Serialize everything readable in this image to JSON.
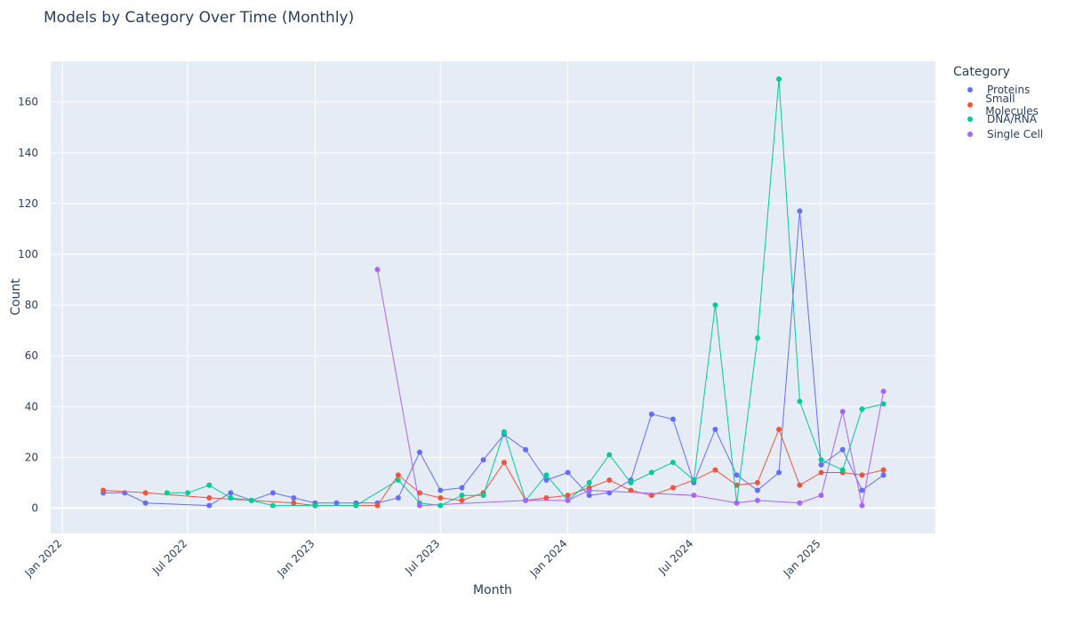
{
  "chart_data": {
    "type": "line",
    "title": "Models by Category Over Time (Monthly)",
    "xlabel": "Month",
    "ylabel": "Count",
    "x_range": [
      "2021-12-15",
      "2025-06-15"
    ],
    "ylim": [
      -10,
      176
    ],
    "x_ticks": [
      {
        "date": "2022-01-01",
        "label": "Jan 2022"
      },
      {
        "date": "2022-07-01",
        "label": "Jul 2022"
      },
      {
        "date": "2023-01-01",
        "label": "Jan 2023"
      },
      {
        "date": "2023-07-01",
        "label": "Jul 2023"
      },
      {
        "date": "2024-01-01",
        "label": "Jan 2024"
      },
      {
        "date": "2024-07-01",
        "label": "Jul 2024"
      },
      {
        "date": "2025-01-01",
        "label": "Jan 2025"
      }
    ],
    "y_ticks": [
      0,
      20,
      40,
      60,
      80,
      100,
      120,
      140,
      160
    ],
    "legend_title": "Category",
    "legend_position": "top-right",
    "grid": true,
    "series": [
      {
        "name": "Proteins",
        "color": "#636efa",
        "points": [
          [
            "2022-03-01",
            6
          ],
          [
            "2022-04-01",
            6
          ],
          [
            "2022-05-01",
            2
          ],
          [
            "2022-08-01",
            1
          ],
          [
            "2022-09-01",
            6
          ],
          [
            "2022-10-01",
            3
          ],
          [
            "2022-11-01",
            6
          ],
          [
            "2022-12-01",
            4
          ],
          [
            "2023-01-01",
            2
          ],
          [
            "2023-02-01",
            2
          ],
          [
            "2023-03-01",
            2
          ],
          [
            "2023-04-01",
            2
          ],
          [
            "2023-05-01",
            4
          ],
          [
            "2023-06-01",
            22
          ],
          [
            "2023-07-01",
            7
          ],
          [
            "2023-08-01",
            8
          ],
          [
            "2023-09-01",
            19
          ],
          [
            "2023-10-01",
            29
          ],
          [
            "2023-11-01",
            23
          ],
          [
            "2023-12-01",
            11
          ],
          [
            "2024-01-01",
            14
          ],
          [
            "2024-02-01",
            5
          ],
          [
            "2024-03-01",
            6
          ],
          [
            "2024-04-01",
            11
          ],
          [
            "2024-05-01",
            37
          ],
          [
            "2024-06-01",
            35
          ],
          [
            "2024-07-01",
            10
          ],
          [
            "2024-08-01",
            31
          ],
          [
            "2024-09-01",
            13
          ],
          [
            "2024-10-01",
            7
          ],
          [
            "2024-11-01",
            14
          ],
          [
            "2024-12-01",
            117
          ],
          [
            "2025-01-01",
            17
          ],
          [
            "2025-02-01",
            23
          ],
          [
            "2025-03-01",
            7
          ],
          [
            "2025-04-01",
            13
          ]
        ]
      },
      {
        "name": "Small Molecules",
        "color": "#ef553b",
        "points": [
          [
            "2022-03-01",
            7
          ],
          [
            "2022-05-01",
            6
          ],
          [
            "2022-08-01",
            4
          ],
          [
            "2022-12-01",
            2
          ],
          [
            "2023-01-01",
            1
          ],
          [
            "2023-04-01",
            1
          ],
          [
            "2023-05-01",
            13
          ],
          [
            "2023-06-01",
            6
          ],
          [
            "2023-07-01",
            4
          ],
          [
            "2023-08-01",
            3
          ],
          [
            "2023-09-01",
            6
          ],
          [
            "2023-10-01",
            18
          ],
          [
            "2023-11-01",
            3
          ],
          [
            "2023-12-01",
            4
          ],
          [
            "2024-01-01",
            5
          ],
          [
            "2024-02-01",
            8
          ],
          [
            "2024-03-01",
            11
          ],
          [
            "2024-04-01",
            7
          ],
          [
            "2024-05-01",
            5
          ],
          [
            "2024-06-01",
            8
          ],
          [
            "2024-07-01",
            11
          ],
          [
            "2024-08-01",
            15
          ],
          [
            "2024-09-01",
            9
          ],
          [
            "2024-10-01",
            10
          ],
          [
            "2024-11-01",
            31
          ],
          [
            "2024-12-01",
            9
          ],
          [
            "2025-01-01",
            14
          ],
          [
            "2025-02-01",
            14
          ],
          [
            "2025-03-01",
            13
          ],
          [
            "2025-04-01",
            15
          ]
        ]
      },
      {
        "name": "DNA/RNA",
        "color": "#00cc96",
        "points": [
          [
            "2022-06-01",
            6
          ],
          [
            "2022-07-01",
            6
          ],
          [
            "2022-08-01",
            9
          ],
          [
            "2022-09-01",
            4
          ],
          [
            "2022-10-01",
            3
          ],
          [
            "2022-11-01",
            1
          ],
          [
            "2023-01-01",
            1
          ],
          [
            "2023-03-01",
            1
          ],
          [
            "2023-05-01",
            11
          ],
          [
            "2023-06-01",
            2
          ],
          [
            "2023-07-01",
            1
          ],
          [
            "2023-08-01",
            5
          ],
          [
            "2023-09-01",
            5
          ],
          [
            "2023-10-01",
            30
          ],
          [
            "2023-11-01",
            3
          ],
          [
            "2023-12-01",
            13
          ],
          [
            "2024-01-01",
            3
          ],
          [
            "2024-02-01",
            10
          ],
          [
            "2024-03-01",
            21
          ],
          [
            "2024-04-01",
            10
          ],
          [
            "2024-05-01",
            14
          ],
          [
            "2024-06-01",
            18
          ],
          [
            "2024-07-01",
            11
          ],
          [
            "2024-08-01",
            80
          ],
          [
            "2024-09-01",
            2
          ],
          [
            "2024-10-01",
            67
          ],
          [
            "2024-11-01",
            169
          ],
          [
            "2024-12-01",
            42
          ],
          [
            "2025-01-01",
            19
          ],
          [
            "2025-02-01",
            15
          ],
          [
            "2025-03-01",
            39
          ],
          [
            "2025-04-01",
            41
          ]
        ]
      },
      {
        "name": "Single Cell",
        "color": "#ab63fa",
        "points": [
          [
            "2023-04-01",
            94
          ],
          [
            "2023-06-01",
            1
          ],
          [
            "2023-11-01",
            3
          ],
          [
            "2024-01-01",
            3
          ],
          [
            "2024-02-01",
            7
          ],
          [
            "2024-07-01",
            5
          ],
          [
            "2024-09-01",
            2
          ],
          [
            "2024-10-01",
            3
          ],
          [
            "2024-12-01",
            2
          ],
          [
            "2025-01-01",
            5
          ],
          [
            "2025-02-01",
            38
          ],
          [
            "2025-03-01",
            1
          ],
          [
            "2025-04-01",
            46
          ]
        ]
      }
    ]
  }
}
